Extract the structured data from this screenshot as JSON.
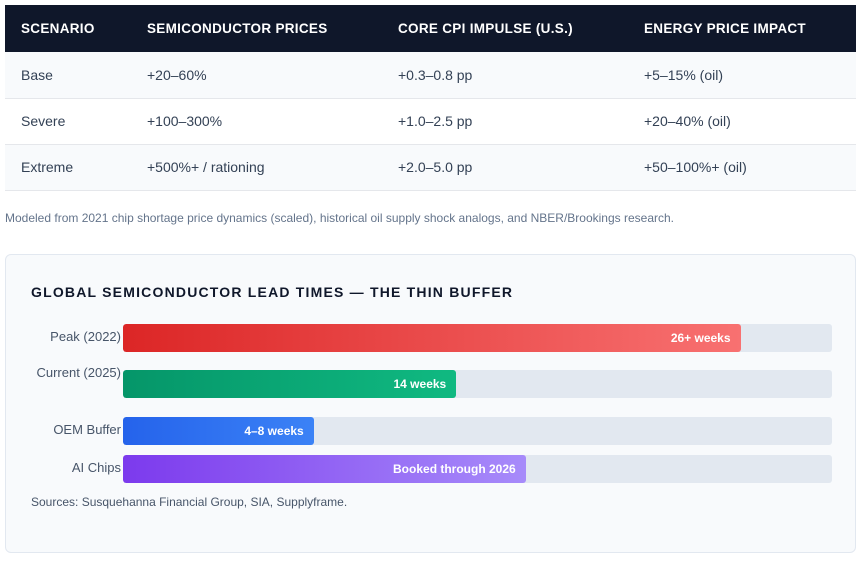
{
  "table": {
    "headers": [
      "SCENARIO",
      "SEMICONDUCTOR PRICES",
      "CORE CPI IMPULSE (U.S.)",
      "ENERGY PRICE IMPACT"
    ],
    "rows": [
      [
        "Base",
        "+20–60%",
        "+0.3–0.8 pp",
        "+5–15% (oil)"
      ],
      [
        "Severe",
        "+100–300%",
        "+1.0–2.5 pp",
        "+20–40% (oil)"
      ],
      [
        "Extreme",
        "+500%+ / rationing",
        "+2.0–5.0 pp",
        "+50–100%+ (oil)"
      ]
    ]
  },
  "note": "Modeled from 2021 chip shortage price dynamics (scaled), historical oil supply shock analogs, and NBER/Brookings research.",
  "lead_times": {
    "title": "GLOBAL SEMICONDUCTOR LEAD TIMES — THE THIN BUFFER",
    "bars": [
      {
        "label": "Peak (2022)",
        "value_label": "26+ weeks",
        "fraction": 0.871,
        "color_start": "#dc2626",
        "color_end": "#f87171"
      },
      {
        "label": "Current (2025)",
        "value_label": "14 weeks",
        "fraction": 0.47,
        "color_start": "#059669",
        "color_end": "#10b981"
      },
      {
        "label": "OEM Buffer",
        "value_label": "4–8 weeks",
        "fraction": 0.269,
        "color_start": "#2563eb",
        "color_end": "#3b82f6"
      },
      {
        "label": "AI Chips",
        "value_label": "Booked through 2026",
        "fraction": 0.568,
        "color_start": "#7c3aed",
        "color_end": "#a78bfa"
      }
    ],
    "sources": "Sources: Susquehanna Financial Group, SIA, Supplyframe."
  }
}
